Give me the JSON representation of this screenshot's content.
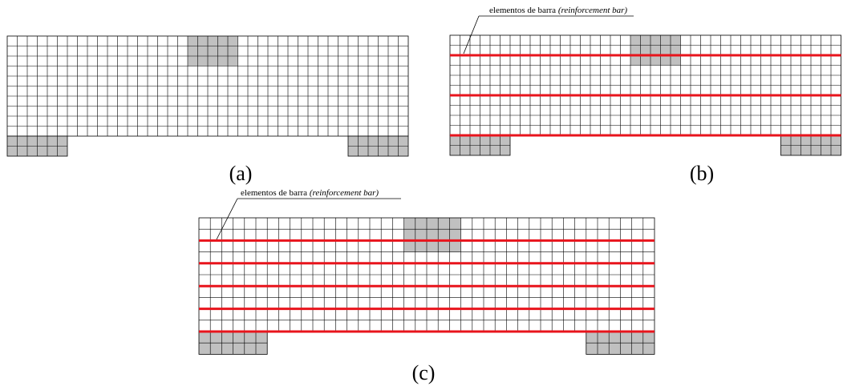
{
  "panels": [
    {
      "label": "(a)",
      "annotation": null,
      "reinforcement_bars": 0
    },
    {
      "label": "(b)",
      "annotation": {
        "text": "elementos de barra",
        "italic": "(reinforcement bar)"
      },
      "reinforcement_bars": 3
    },
    {
      "label": "(c)",
      "annotation": {
        "text": "elementos de barra",
        "italic": "(reinforcement bar)"
      },
      "reinforcement_bars": 5
    }
  ],
  "colors": {
    "grid_line": "#000000",
    "support_fill": "#c0c0c0",
    "bar": "#e8141c",
    "background": "#ffffff"
  }
}
